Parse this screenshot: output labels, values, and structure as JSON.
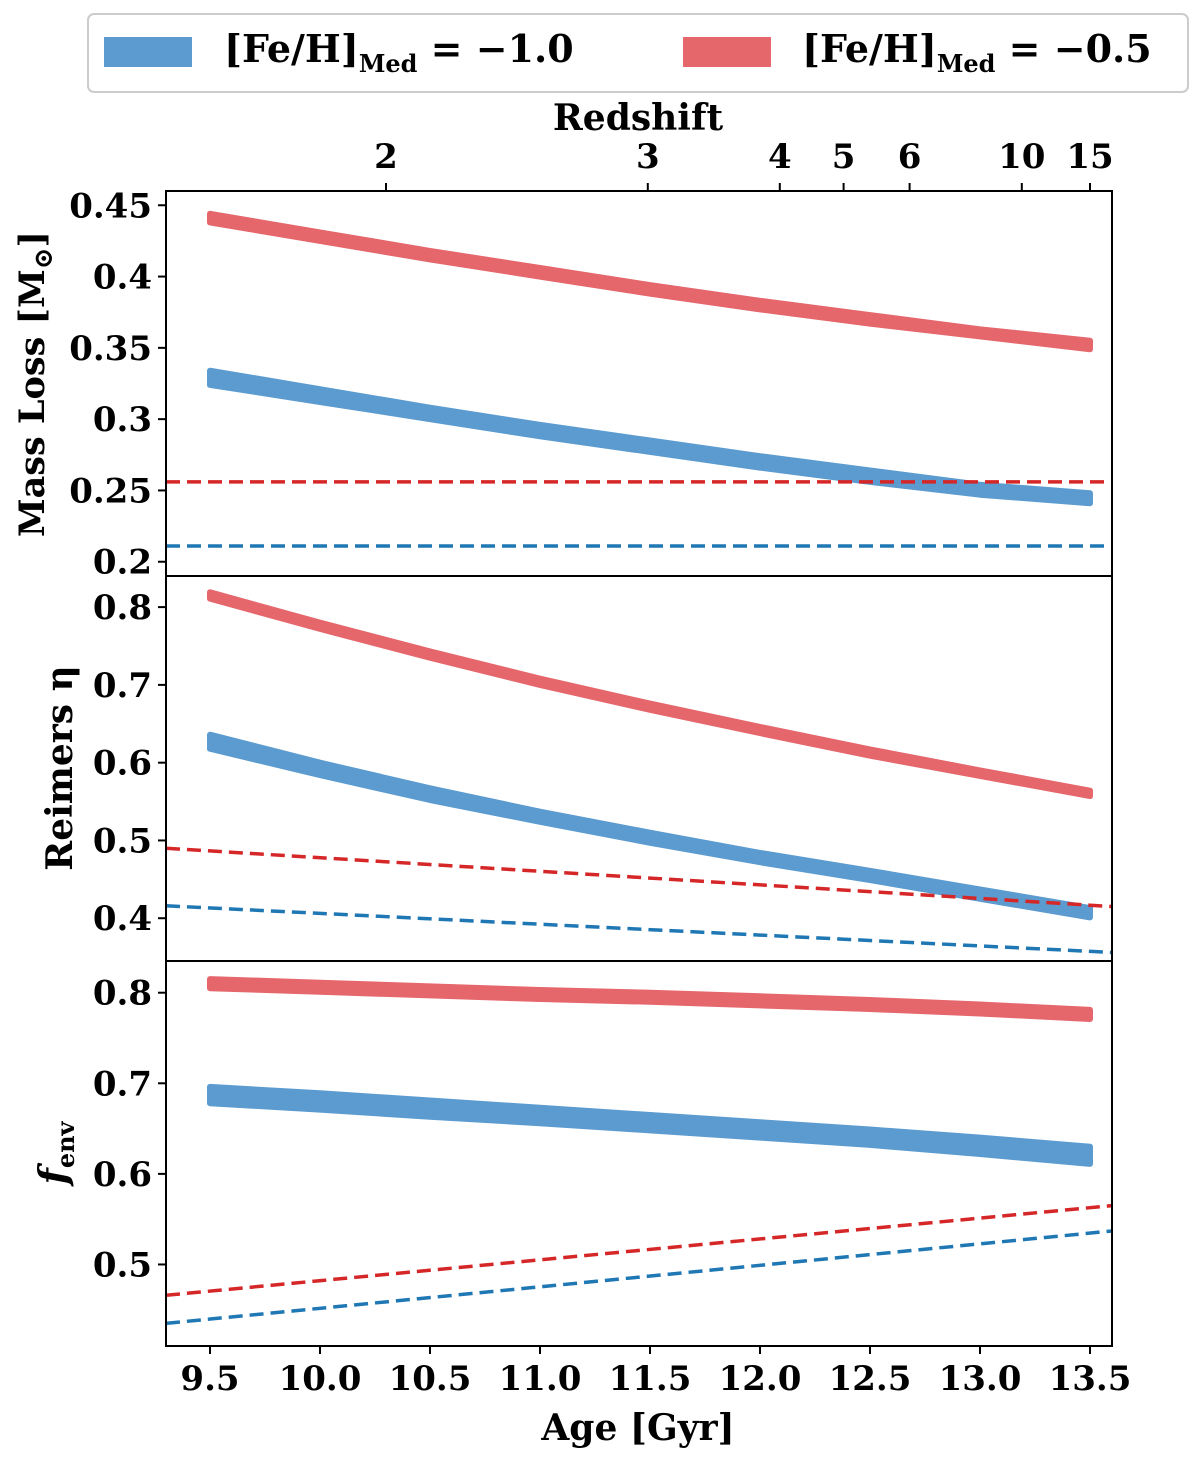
{
  "legend": {
    "entries": [
      {
        "label_main": "[Fe/H]",
        "label_sub": "Med",
        "label_value": " = −1.0",
        "color": "#5b9bcf"
      },
      {
        "label_main": "[Fe/H]",
        "label_sub": "Med",
        "label_value": " = −0.5",
        "color": "#e5666b"
      }
    ]
  },
  "top_axis": {
    "label": "Redshift",
    "ticks": [
      {
        "label": "2",
        "age": 10.3
      },
      {
        "label": "3",
        "age": 11.49
      },
      {
        "label": "4",
        "age": 12.09
      },
      {
        "label": "5",
        "age": 12.38
      },
      {
        "label": "6",
        "age": 12.68
      },
      {
        "label": "10",
        "age": 13.19
      },
      {
        "label": "15",
        "age": 13.5
      }
    ]
  },
  "xaxis": {
    "label": "Age [Gyr]",
    "range": [
      9.3,
      13.6
    ],
    "ticks": [
      "9.5",
      "10.0",
      "10.5",
      "11.0",
      "11.5",
      "12.0",
      "12.5",
      "13.0",
      "13.5"
    ]
  },
  "chart_data": [
    {
      "type": "line",
      "panel": "mass_loss",
      "ylabel_main": "Mass Loss [M",
      "ylabel_sym": "⊙",
      "ylabel_end": "]",
      "ylim": [
        0.19,
        0.46
      ],
      "yticks": [
        "0.2",
        "0.25",
        "0.3",
        "0.35",
        "0.4",
        "0.45"
      ],
      "x": [
        9.5,
        10.0,
        10.5,
        11.0,
        11.5,
        12.0,
        12.5,
        13.0,
        13.5
      ],
      "bands": [
        {
          "name": "[Fe/H]Med = −1.0",
          "color": "#5b9bcf",
          "lower": [
            0.324,
            0.312,
            0.3,
            0.288,
            0.277,
            0.266,
            0.256,
            0.247,
            0.241
          ],
          "upper": [
            0.334,
            0.321,
            0.308,
            0.296,
            0.285,
            0.274,
            0.264,
            0.254,
            0.248
          ]
        },
        {
          "name": "[Fe/H]Med = −0.5",
          "color": "#e5666b",
          "lower": [
            0.438,
            0.425,
            0.412,
            0.4,
            0.388,
            0.377,
            0.367,
            0.358,
            0.349
          ],
          "upper": [
            0.444,
            0.431,
            0.418,
            0.406,
            0.394,
            0.383,
            0.373,
            0.363,
            0.355
          ]
        }
      ],
      "dashed": [
        {
          "name": "[Fe/H]Med = −1.0 reference",
          "color": "#1f77b4",
          "x": [
            9.3,
            13.6
          ],
          "y": [
            0.211,
            0.211
          ]
        },
        {
          "name": "[Fe/H]Med = −0.5 reference",
          "color": "#d62728",
          "x": [
            9.3,
            13.6
          ],
          "y": [
            0.256,
            0.256
          ]
        }
      ]
    },
    {
      "type": "line",
      "panel": "reimers_eta",
      "ylabel_main": "Reimers η",
      "ylim": [
        0.345,
        0.84
      ],
      "yticks": [
        "0.4",
        "0.5",
        "0.6",
        "0.7",
        "0.8"
      ],
      "x": [
        9.5,
        10.0,
        10.5,
        11.0,
        11.5,
        12.0,
        12.5,
        13.0,
        13.5
      ],
      "bands": [
        {
          "name": "[Fe/H]Med = −1.0",
          "color": "#5b9bcf",
          "lower": [
            0.618,
            0.584,
            0.552,
            0.524,
            0.497,
            0.472,
            0.449,
            0.425,
            0.401
          ],
          "upper": [
            0.636,
            0.6,
            0.567,
            0.537,
            0.51,
            0.484,
            0.461,
            0.437,
            0.413
          ]
        },
        {
          "name": "[Fe/H]Med = −0.5",
          "color": "#e5666b",
          "lower": [
            0.811,
            0.772,
            0.735,
            0.7,
            0.668,
            0.638,
            0.609,
            0.583,
            0.557
          ],
          "upper": [
            0.819,
            0.78,
            0.743,
            0.708,
            0.676,
            0.646,
            0.617,
            0.59,
            0.564
          ]
        }
      ],
      "dashed": [
        {
          "name": "[Fe/H]Med = −1.0 reference",
          "color": "#1f77b4",
          "x": [
            9.3,
            13.6
          ],
          "y": [
            0.416,
            0.356
          ]
        },
        {
          "name": "[Fe/H]Med = −0.5 reference",
          "color": "#d62728",
          "x": [
            9.3,
            13.6
          ],
          "y": [
            0.49,
            0.415
          ]
        }
      ]
    },
    {
      "type": "line",
      "panel": "f_env",
      "ylabel_main": "f",
      "ylabel_sub": "env",
      "ylim": [
        0.41,
        0.835
      ],
      "yticks": [
        "0.5",
        "0.6",
        "0.7",
        "0.8"
      ],
      "x": [
        9.5,
        10.0,
        10.5,
        11.0,
        11.5,
        12.0,
        12.5,
        13.0,
        13.5
      ],
      "bands": [
        {
          "name": "[Fe/H]Med = −1.0",
          "color": "#5b9bcf",
          "lower": [
            0.678,
            0.671,
            0.663,
            0.656,
            0.648,
            0.64,
            0.632,
            0.622,
            0.611
          ],
          "upper": [
            0.696,
            0.689,
            0.681,
            0.673,
            0.665,
            0.657,
            0.649,
            0.64,
            0.63
          ]
        },
        {
          "name": "[Fe/H]Med = −0.5",
          "color": "#e5666b",
          "lower": [
            0.805,
            0.801,
            0.797,
            0.793,
            0.79,
            0.786,
            0.782,
            0.777,
            0.771
          ],
          "upper": [
            0.815,
            0.811,
            0.807,
            0.803,
            0.8,
            0.796,
            0.792,
            0.787,
            0.781
          ]
        }
      ],
      "dashed": [
        {
          "name": "[Fe/H]Med = −1.0 reference",
          "color": "#1f77b4",
          "x": [
            9.3,
            13.6
          ],
          "y": [
            0.435,
            0.537
          ]
        },
        {
          "name": "[Fe/H]Med = −0.5 reference",
          "color": "#d62728",
          "x": [
            9.3,
            13.6
          ],
          "y": [
            0.466,
            0.565
          ]
        }
      ]
    }
  ]
}
